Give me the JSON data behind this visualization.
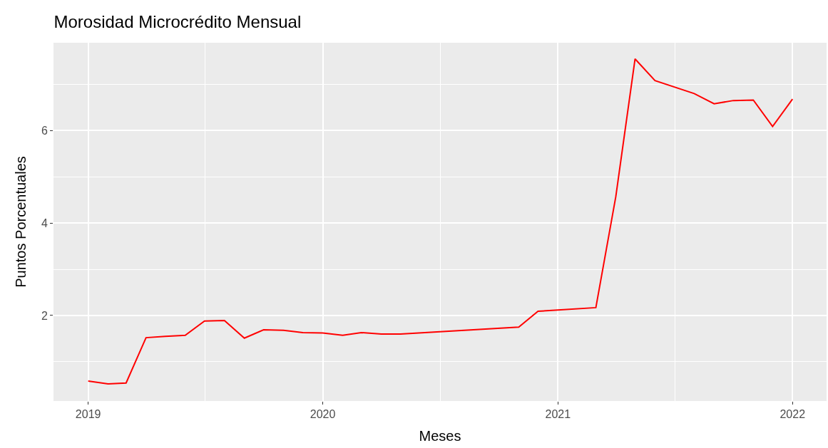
{
  "chart_data": {
    "type": "line",
    "title": "Morosidad Microcrédito Mensual",
    "xlabel": "Meses",
    "ylabel": "Puntos Porcentuales",
    "x": [
      "2019-01",
      "2019-02",
      "2019-03",
      "2019-04",
      "2019-05",
      "2019-06",
      "2019-07",
      "2019-08",
      "2019-09",
      "2019-10",
      "2019-11",
      "2019-12",
      "2020-01",
      "2020-02",
      "2020-03",
      "2020-04",
      "2020-05",
      "2020-11",
      "2020-12",
      "2021-01",
      "2021-03",
      "2021-04",
      "2021-05",
      "2021-06",
      "2021-08",
      "2021-09",
      "2021-10",
      "2021-11",
      "2021-12",
      "2022-01"
    ],
    "series": [
      {
        "color": "#ff0000",
        "values": [
          0.58,
          0.52,
          0.54,
          1.52,
          1.55,
          1.57,
          1.88,
          1.89,
          1.51,
          1.69,
          1.68,
          1.63,
          1.62,
          1.57,
          1.63,
          1.6,
          1.6,
          1.75,
          2.09,
          2.12,
          2.17,
          4.57,
          7.55,
          7.08,
          6.8,
          6.58,
          6.65,
          6.66,
          6.09,
          6.68
        ]
      }
    ],
    "xlim": [
      "2018-11-08",
      "2022-02-23"
    ],
    "xticks": [
      {
        "value": "2019-01-01",
        "label": "2019"
      },
      {
        "value": "2020-01-01",
        "label": "2020"
      },
      {
        "value": "2021-01-01",
        "label": "2021"
      },
      {
        "value": "2022-01-01",
        "label": "2022"
      }
    ],
    "ylim": [
      0.15,
      7.9
    ],
    "yticks": [
      2,
      4,
      6
    ],
    "grid": true,
    "marker": "none",
    "line_style": "solid"
  }
}
